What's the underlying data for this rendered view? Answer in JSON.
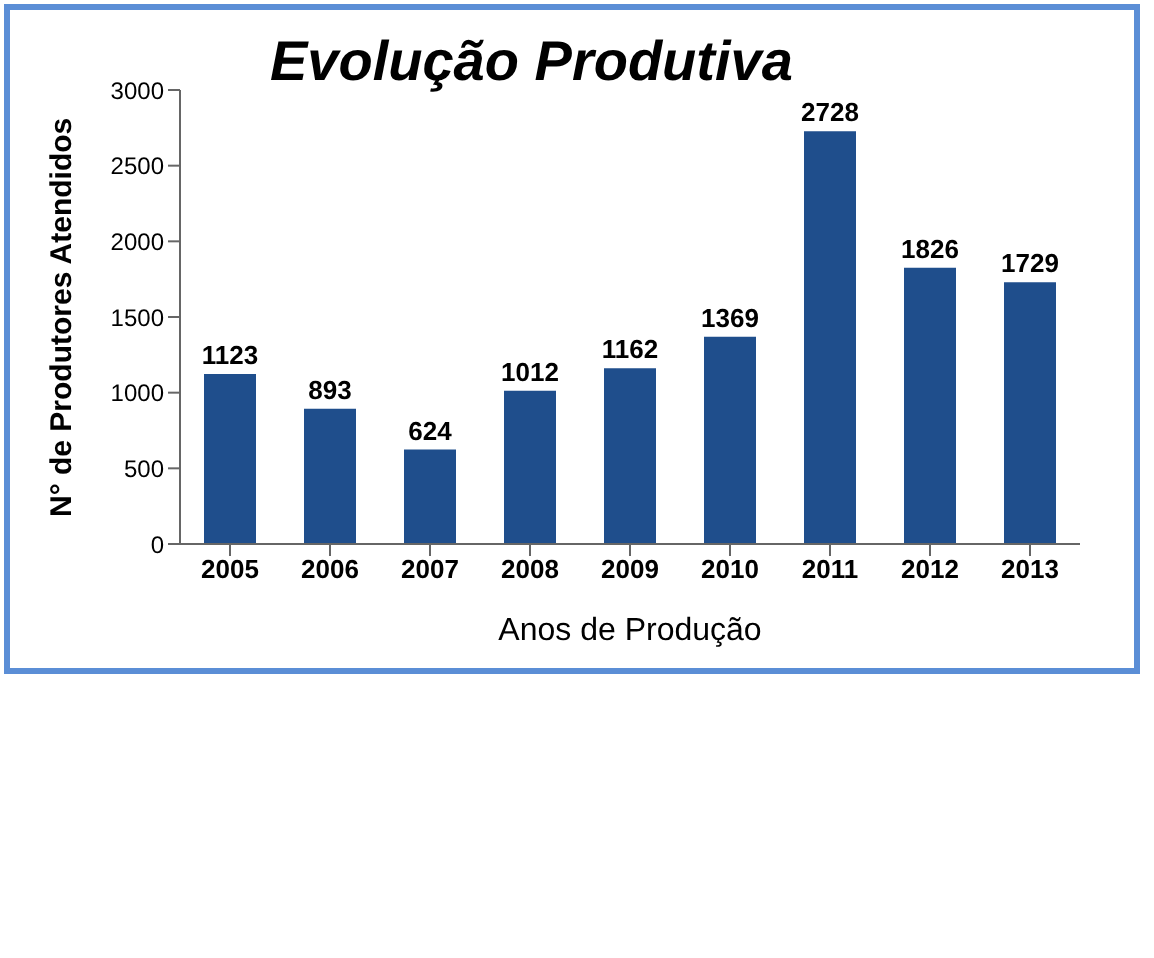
{
  "chart_data": {
    "type": "bar",
    "title": "Evolução Produtiva",
    "xlabel": "Anos de Produção",
    "ylabel": "N° de Produtores Atendidos",
    "categories": [
      "2005",
      "2006",
      "2007",
      "2008",
      "2009",
      "2010",
      "2011",
      "2012",
      "2013"
    ],
    "values": [
      1123,
      893,
      624,
      1012,
      1162,
      1369,
      2728,
      1826,
      1729
    ],
    "color": "#1f4e8c",
    "ylim": [
      0,
      3000
    ],
    "yticks": [
      0,
      500,
      1000,
      1500,
      2000,
      2500,
      3000
    ],
    "data_labels": true,
    "grid": false
  }
}
